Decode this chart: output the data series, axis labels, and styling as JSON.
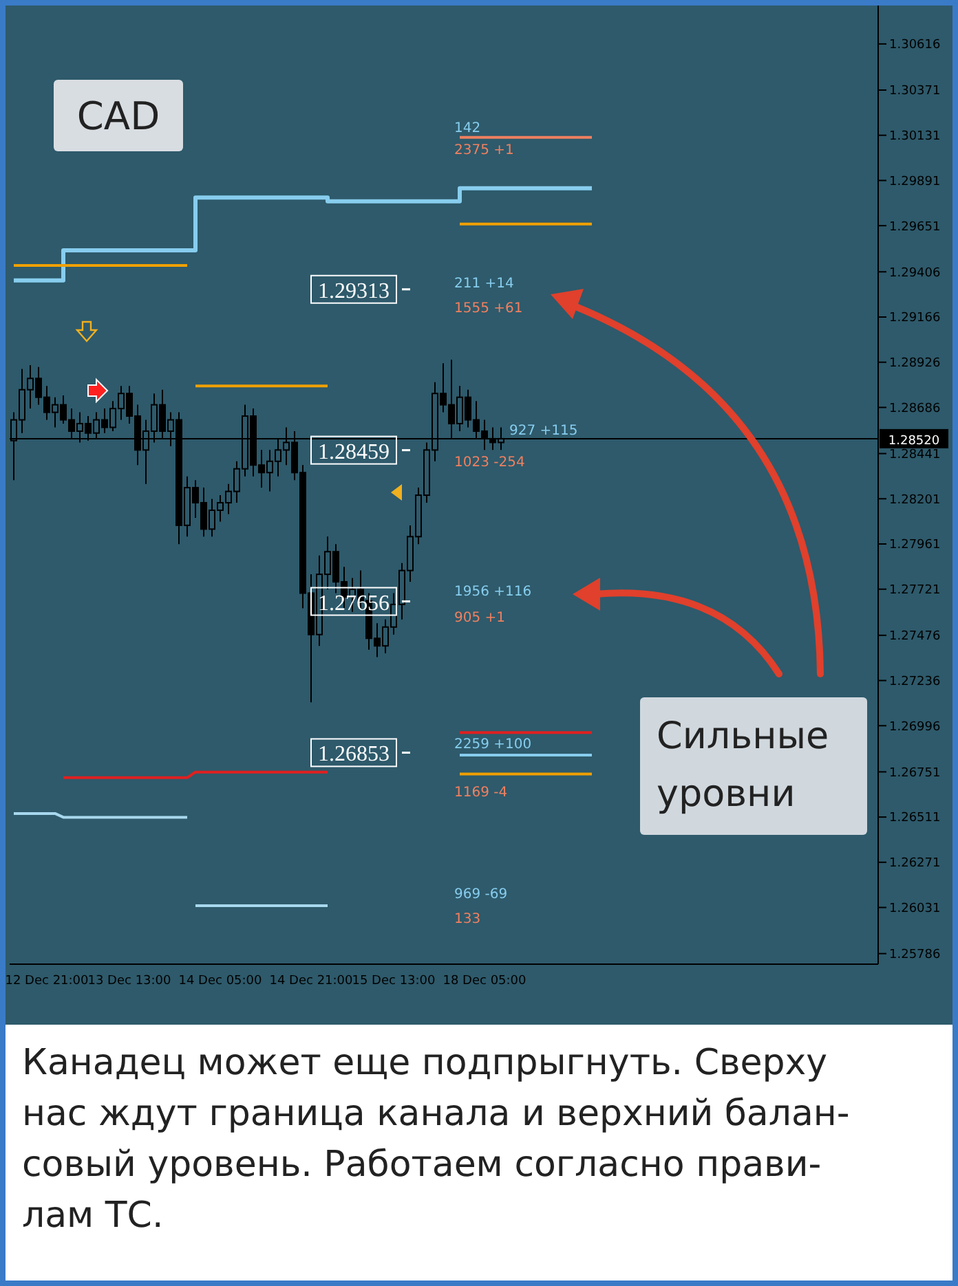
{
  "chart_data": {
    "type": "candlestick",
    "title": "CAD",
    "color": "#000000",
    "categories": [
      null,
      null,
      null,
      null,
      "12 Dec 21:00",
      null,
      null,
      null,
      null,
      null,
      null,
      null,
      null,
      null,
      "13 Dec 13:00",
      null,
      null,
      null,
      null,
      null,
      null,
      null,
      null,
      null,
      null,
      "14 Dec 05:00",
      null,
      null,
      null,
      null,
      null,
      null,
      null,
      null,
      null,
      null,
      "14 Dec 21:00",
      null,
      null,
      null,
      null,
      null,
      null,
      null,
      null,
      null,
      "15 Dec 13:00",
      null,
      null,
      null,
      null,
      null,
      null,
      null,
      null,
      null,
      null,
      "18 Dec 05:00",
      null,
      null,
      null,
      null,
      null,
      null,
      null,
      null,
      null,
      null,
      null,
      null,
      null
    ],
    "ohlc": [
      [
        1.2851,
        1.2866,
        1.283,
        1.2862
      ],
      [
        1.2862,
        1.2889,
        1.2855,
        1.2878
      ],
      [
        1.2878,
        1.2891,
        1.2868,
        1.2884
      ],
      [
        1.2884,
        1.289,
        1.287,
        1.2874
      ],
      [
        1.2874,
        1.288,
        1.2862,
        1.2866
      ],
      [
        1.2866,
        1.2874,
        1.2858,
        1.287
      ],
      [
        1.287,
        1.2875,
        1.286,
        1.2862
      ],
      [
        1.2862,
        1.2868,
        1.2852,
        1.2856
      ],
      [
        1.2856,
        1.2866,
        1.285,
        1.286
      ],
      [
        1.286,
        1.2864,
        1.2851,
        1.2855
      ],
      [
        1.2855,
        1.2866,
        1.2852,
        1.2862
      ],
      [
        1.2862,
        1.2868,
        1.2855,
        1.2858
      ],
      [
        1.2858,
        1.2872,
        1.2856,
        1.2868
      ],
      [
        1.2868,
        1.288,
        1.2862,
        1.2876
      ],
      [
        1.2876,
        1.288,
        1.286,
        1.2864
      ],
      [
        1.2864,
        1.287,
        1.2838,
        1.2846
      ],
      [
        1.2846,
        1.2862,
        1.2828,
        1.2856
      ],
      [
        1.2856,
        1.2876,
        1.285,
        1.287
      ],
      [
        1.287,
        1.2878,
        1.2852,
        1.2856
      ],
      [
        1.2856,
        1.2866,
        1.2848,
        1.2862
      ],
      [
        1.2862,
        1.2866,
        1.2796,
        1.2806
      ],
      [
        1.2806,
        1.2832,
        1.28,
        1.2826
      ],
      [
        1.2826,
        1.283,
        1.281,
        1.2818
      ],
      [
        1.2818,
        1.2826,
        1.28,
        1.2804
      ],
      [
        1.2804,
        1.282,
        1.28,
        1.2814
      ],
      [
        1.2814,
        1.2822,
        1.2808,
        1.2818
      ],
      [
        1.2818,
        1.2828,
        1.2812,
        1.2824
      ],
      [
        1.2824,
        1.284,
        1.2818,
        1.2836
      ],
      [
        1.2836,
        1.287,
        1.2832,
        1.2864
      ],
      [
        1.2864,
        1.2868,
        1.2832,
        1.2838
      ],
      [
        1.2838,
        1.2846,
        1.2826,
        1.2834
      ],
      [
        1.2834,
        1.2846,
        1.2824,
        1.284
      ],
      [
        1.284,
        1.2852,
        1.2832,
        1.2846
      ],
      [
        1.2846,
        1.2858,
        1.2838,
        1.285
      ],
      [
        1.285,
        1.2856,
        1.283,
        1.2834
      ],
      [
        1.2834,
        1.2838,
        1.2762,
        1.277
      ],
      [
        1.277,
        1.278,
        1.2712,
        1.2748
      ],
      [
        1.2748,
        1.279,
        1.2742,
        1.278
      ],
      [
        1.278,
        1.28,
        1.2772,
        1.2792
      ],
      [
        1.2792,
        1.2796,
        1.277,
        1.2776
      ],
      [
        1.2776,
        1.2784,
        1.2762,
        1.2768
      ],
      [
        1.2768,
        1.2778,
        1.276,
        1.2772
      ],
      [
        1.2772,
        1.2782,
        1.2762,
        1.2766
      ],
      [
        1.2766,
        1.277,
        1.274,
        1.2746
      ],
      [
        1.2746,
        1.2754,
        1.2736,
        1.2742
      ],
      [
        1.2742,
        1.2756,
        1.2738,
        1.2752
      ],
      [
        1.2752,
        1.277,
        1.2748,
        1.2764
      ],
      [
        1.2764,
        1.2786,
        1.2756,
        1.2782
      ],
      [
        1.2782,
        1.2806,
        1.2776,
        1.28
      ],
      [
        1.28,
        1.2826,
        1.2796,
        1.2822
      ],
      [
        1.2822,
        1.285,
        1.2818,
        1.2846
      ],
      [
        1.2846,
        1.2882,
        1.284,
        1.2876
      ],
      [
        1.2876,
        1.2892,
        1.2866,
        1.287
      ],
      [
        1.287,
        1.2894,
        1.2852,
        1.286
      ],
      [
        1.286,
        1.288,
        1.2856,
        1.2874
      ],
      [
        1.2874,
        1.2878,
        1.2858,
        1.2862
      ],
      [
        1.2862,
        1.2872,
        1.2852,
        1.2856
      ],
      [
        1.2856,
        1.2862,
        1.2846,
        1.2852
      ],
      [
        1.2852,
        1.2858,
        1.2846,
        1.285
      ],
      [
        1.285,
        1.2858,
        1.2846,
        1.2852
      ],
      null,
      null,
      null,
      null,
      null,
      null,
      null,
      null,
      null,
      null,
      null
    ],
    "series": [
      {
        "type": "step",
        "color": "#87cdee",
        "values": [
          1.2936,
          1.2936,
          1.2936,
          1.2936,
          1.2936,
          1.2936,
          1.2952,
          1.2952,
          1.2952,
          1.2952,
          1.2952,
          1.2952,
          1.2952,
          1.2952,
          1.2952,
          1.2952,
          1.2952,
          1.2952,
          1.2952,
          1.2952,
          1.2952,
          1.2952,
          1.298,
          1.298,
          1.298,
          1.298,
          1.298,
          1.298,
          1.298,
          1.298,
          1.298,
          1.298,
          1.298,
          1.298,
          1.298,
          1.298,
          1.298,
          1.298,
          1.2978,
          1.2978,
          1.2978,
          1.2978,
          1.2978,
          1.2978,
          1.2978,
          1.2978,
          1.2978,
          1.2978,
          1.2978,
          1.2978,
          1.2978,
          1.2978,
          1.2978,
          1.2978,
          1.2985,
          1.2985,
          1.2985,
          1.2985,
          1.2985,
          1.2985,
          1.2985,
          1.2985,
          1.2985,
          1.2985,
          1.2985,
          1.2985,
          1.2985,
          1.2985,
          1.2985,
          1.2985,
          1.2985
        ]
      },
      {
        "type": "line",
        "color": "#f0a000",
        "values": [
          1.2944,
          1.2944,
          1.2944,
          1.2944,
          1.2944,
          1.2944,
          1.2944,
          1.2944,
          1.2944,
          1.2944,
          1.2944,
          1.2944,
          1.2944,
          1.2944,
          1.2944,
          1.2944,
          1.2944,
          1.2944,
          1.2944,
          1.2944,
          1.2944,
          1.2944,
          null,
          null,
          null,
          null,
          null,
          null,
          null,
          null,
          null,
          null,
          null,
          null,
          null,
          null,
          null,
          null,
          null,
          null,
          null,
          null,
          null,
          null,
          null,
          null,
          null,
          null,
          null,
          null,
          null,
          null,
          null,
          null,
          null,
          null,
          null,
          null,
          null,
          null,
          null,
          null,
          null,
          null,
          null,
          null,
          null,
          null,
          null,
          null,
          null
        ]
      },
      {
        "type": "line",
        "color": "#f0a000",
        "values": [
          null,
          null,
          null,
          null,
          null,
          null,
          null,
          null,
          null,
          null,
          null,
          null,
          null,
          null,
          null,
          null,
          null,
          null,
          null,
          null,
          null,
          null,
          1.288,
          1.288,
          1.288,
          1.288,
          1.288,
          1.288,
          1.288,
          1.288,
          1.288,
          1.288,
          1.288,
          1.288,
          1.288,
          1.288,
          1.288,
          1.288,
          1.288,
          null,
          null,
          null,
          null,
          null,
          null,
          null,
          null,
          null,
          null,
          null,
          null,
          null,
          null,
          null,
          null,
          null,
          null,
          null,
          null,
          null,
          null,
          null,
          null,
          null,
          null,
          null,
          null,
          null,
          null,
          null,
          null
        ]
      },
      {
        "type": "line",
        "color": "#f0a000",
        "values": [
          null,
          null,
          null,
          null,
          null,
          null,
          null,
          null,
          null,
          null,
          null,
          null,
          null,
          null,
          null,
          null,
          null,
          null,
          null,
          null,
          null,
          null,
          null,
          null,
          null,
          null,
          null,
          null,
          null,
          null,
          null,
          null,
          null,
          null,
          null,
          null,
          null,
          null,
          null,
          null,
          null,
          null,
          null,
          null,
          null,
          null,
          null,
          null,
          null,
          null,
          null,
          null,
          null,
          null,
          1.2966,
          1.2966,
          1.2966,
          1.2966,
          1.2966,
          1.2966,
          1.2966,
          1.2966,
          1.2966,
          1.2966,
          1.2966,
          1.2966,
          1.2966,
          1.2966,
          1.2966,
          1.2966,
          1.2966
        ]
      },
      {
        "type": "line",
        "color": "#f08060",
        "values": [
          null,
          null,
          null,
          null,
          null,
          null,
          null,
          null,
          null,
          null,
          null,
          null,
          null,
          null,
          null,
          null,
          null,
          null,
          null,
          null,
          null,
          null,
          null,
          null,
          null,
          null,
          null,
          null,
          null,
          null,
          null,
          null,
          null,
          null,
          null,
          null,
          null,
          null,
          null,
          null,
          null,
          null,
          null,
          null,
          null,
          null,
          null,
          null,
          null,
          null,
          null,
          null,
          null,
          null,
          1.3012,
          1.3012,
          1.3012,
          1.3012,
          1.3012,
          1.3012,
          1.3012,
          1.3012,
          1.3012,
          1.3012,
          1.3012,
          1.3012,
          1.3012,
          1.3012,
          1.3012,
          1.3012,
          1.3012
        ]
      },
      {
        "type": "line",
        "color": "#e02020",
        "values": [
          null,
          null,
          null,
          null,
          null,
          null,
          1.2672,
          1.2672,
          1.2672,
          1.2672,
          1.2672,
          1.2672,
          1.2672,
          1.2672,
          1.2672,
          1.2672,
          1.2672,
          1.2672,
          1.2672,
          1.2672,
          1.2672,
          1.2672,
          1.2675,
          1.2675,
          1.2675,
          1.2675,
          1.2675,
          1.2675,
          1.2675,
          1.2675,
          1.2675,
          1.2675,
          1.2675,
          1.2675,
          1.2675,
          1.2675,
          1.2675,
          1.2675,
          1.2675,
          null,
          null,
          null,
          null,
          null,
          null,
          null,
          null,
          null,
          null,
          null,
          null,
          null,
          null,
          null,
          null,
          null,
          null,
          null,
          null,
          null,
          null,
          null,
          null,
          null,
          null,
          null,
          null,
          null,
          null,
          null,
          null
        ]
      },
      {
        "type": "line",
        "color": "#e02020",
        "values": [
          null,
          null,
          null,
          null,
          null,
          null,
          null,
          null,
          null,
          null,
          null,
          null,
          null,
          null,
          null,
          null,
          null,
          null,
          null,
          null,
          null,
          null,
          null,
          null,
          null,
          null,
          null,
          null,
          null,
          null,
          null,
          null,
          null,
          null,
          null,
          null,
          null,
          null,
          null,
          null,
          null,
          null,
          null,
          null,
          null,
          null,
          null,
          null,
          null,
          null,
          null,
          null,
          null,
          null,
          1.2696,
          1.2696,
          1.2696,
          1.2696,
          1.2696,
          1.2696,
          1.2696,
          1.2696,
          1.2696,
          1.2696,
          1.2696,
          1.2696,
          1.2696,
          1.2696,
          1.2696,
          1.2696,
          1.2696
        ]
      },
      {
        "type": "line",
        "color": "#87cdee",
        "values": [
          null,
          null,
          null,
          null,
          null,
          null,
          null,
          null,
          null,
          null,
          null,
          null,
          null,
          null,
          null,
          null,
          null,
          null,
          null,
          null,
          null,
          null,
          null,
          null,
          null,
          null,
          null,
          null,
          null,
          null,
          null,
          null,
          null,
          null,
          null,
          null,
          null,
          null,
          null,
          null,
          null,
          null,
          null,
          null,
          null,
          null,
          null,
          null,
          null,
          null,
          null,
          null,
          null,
          null,
          1.2684,
          1.2684,
          1.2684,
          1.2684,
          1.2684,
          1.2684,
          1.2684,
          1.2684,
          1.2684,
          1.2684,
          1.2684,
          1.2684,
          1.2684,
          1.2684,
          1.2684,
          1.2684,
          1.2684
        ]
      },
      {
        "type": "line",
        "color": "#f0a000",
        "values": [
          null,
          null,
          null,
          null,
          null,
          null,
          null,
          null,
          null,
          null,
          null,
          null,
          null,
          null,
          null,
          null,
          null,
          null,
          null,
          null,
          null,
          null,
          null,
          null,
          null,
          null,
          null,
          null,
          null,
          null,
          null,
          null,
          null,
          null,
          null,
          null,
          null,
          null,
          null,
          null,
          null,
          null,
          null,
          null,
          null,
          null,
          null,
          null,
          null,
          null,
          null,
          null,
          null,
          null,
          1.2674,
          1.2674,
          1.2674,
          1.2674,
          1.2674,
          1.2674,
          1.2674,
          1.2674,
          1.2674,
          1.2674,
          1.2674,
          1.2674,
          1.2674,
          1.2674,
          1.2674,
          1.2674,
          1.2674
        ]
      },
      {
        "type": "line",
        "color": "#a8d8ee",
        "values": [
          1.2653,
          1.2653,
          1.2653,
          1.2653,
          1.2653,
          1.2653,
          1.2651,
          1.2651,
          1.2651,
          1.2651,
          1.2651,
          1.2651,
          1.2651,
          1.2651,
          1.2651,
          1.2651,
          1.2651,
          1.2651,
          1.2651,
          1.2651,
          1.2651,
          1.2651,
          null,
          null,
          null,
          null,
          null,
          null,
          null,
          null,
          null,
          null,
          null,
          null,
          null,
          null,
          null,
          null,
          null,
          null,
          null,
          null,
          null,
          null,
          null,
          null,
          null,
          null,
          null,
          null,
          null,
          null,
          null,
          null,
          null,
          null,
          null,
          null,
          null,
          null,
          null,
          null,
          null,
          null,
          null,
          null,
          null,
          null,
          null,
          null,
          null
        ]
      },
      {
        "type": "line",
        "color": "#a8d8ee",
        "values": [
          null,
          null,
          null,
          null,
          null,
          null,
          null,
          null,
          null,
          null,
          null,
          null,
          null,
          null,
          null,
          null,
          null,
          null,
          null,
          null,
          null,
          null,
          1.2604,
          1.2604,
          1.2604,
          1.2604,
          1.2604,
          1.2604,
          1.2604,
          1.2604,
          1.2604,
          1.2604,
          1.2604,
          1.2604,
          1.2604,
          1.2604,
          1.2604,
          1.2604,
          1.2604,
          null,
          null,
          null,
          null,
          null,
          null,
          null,
          null,
          null,
          null,
          null,
          null,
          null,
          null,
          null,
          null,
          null,
          null,
          null,
          null,
          null,
          null,
          null,
          null,
          null,
          null,
          null,
          null,
          null,
          null,
          null,
          null
        ]
      }
    ],
    "ylim": [
      1.2573,
      1.3082
    ],
    "yticks": [
      1.25786,
      1.26031,
      1.26271,
      1.26511,
      1.26751,
      1.26996,
      1.27236,
      1.27476,
      1.27721,
      1.27961,
      1.28201,
      1.28441,
      1.28686,
      1.28926,
      1.29166,
      1.29406,
      1.29651,
      1.29891,
      1.30131,
      1.30371,
      1.30616
    ],
    "ref_lines": [
      {
        "axis": "y",
        "value": 1.2852,
        "label": "1.28520",
        "color": "#000000"
      },
      {
        "axis": "y",
        "value": 1.29313,
        "label": "1.29313",
        "color": "#ffffff"
      },
      {
        "axis": "y",
        "value": 1.28459,
        "label": "1.28459",
        "color": "#ffffff"
      },
      {
        "axis": "y",
        "value": 1.27656,
        "label": "1.27656",
        "color": "#ffffff"
      },
      {
        "axis": "y",
        "value": 1.26853,
        "label": "1.26853",
        "color": "#ffffff"
      }
    ],
    "annotations": [
      "142",
      "2375 +1",
      "211 +14",
      "1555 +61",
      "927 +115",
      "1023 -254",
      "1956 +116",
      "905 +1",
      "2259 +100",
      "1169 -4",
      "969 -69",
      "133",
      "Сильные уровни",
      "Канадец может еще подпрыгнуть. Сверху\nнас ждут граница канала и верхний балан-\nсовый уровень. Работаем согласно прави-\nлам ТС."
    ],
    "legend": false
  }
}
